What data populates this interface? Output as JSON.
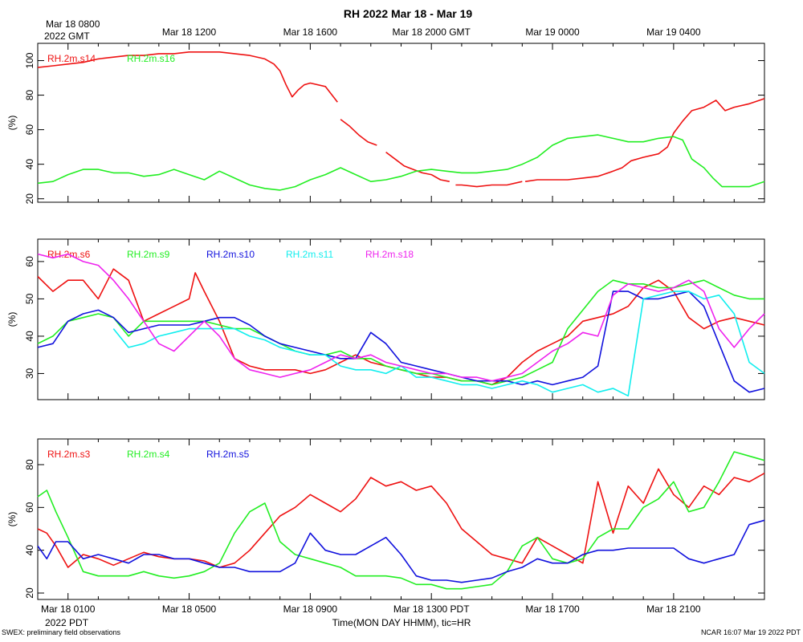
{
  "figure": {
    "title": "RH 2022 Mar 18 - Mar 19",
    "top_axis": {
      "first_label_line1": "Mar 18 0800",
      "first_label_line2": "2022 GMT",
      "labels": [
        "Mar 18 1200",
        "Mar 18 1600",
        "Mar 18 2000 GMT",
        "Mar 19 0000",
        "Mar 19 0400"
      ]
    },
    "bottom_axis": {
      "labels": [
        "Mar 18 0100",
        "Mar 18 0500",
        "Mar 18 0900",
        "Mar 18 1300 PDT",
        "Mar 18 1700",
        "Mar 18 2100"
      ],
      "year_label": "2022 PDT",
      "xlabel": "Time(MON DAY HHMM), tic=HR"
    },
    "footer_left": "SWEX: preliminary field observations",
    "footer_right": "NCAR 16:07 Mar 19 2022 PDT"
  },
  "chart_data": [
    {
      "type": "line",
      "x_unit": "hours since Mar 18 0000 PDT",
      "xlim": [
        0,
        24
      ],
      "ylabel": "(%)",
      "ylim": [
        18,
        110
      ],
      "yticks": [
        20,
        40,
        60,
        80,
        100
      ],
      "series": [
        {
          "name": "RH.2m.s14",
          "color": "#ee1111",
          "x": [
            0,
            0.5,
            1,
            1.5,
            2,
            2.5,
            3,
            3.5,
            4,
            4.5,
            5,
            5.5,
            6,
            6.5,
            7,
            7.5,
            7.8,
            8,
            8.2,
            8.4,
            8.6,
            8.8,
            9,
            9.5,
            9.9,
            null,
            10,
            10.3,
            10.6,
            10.9,
            11.2,
            null,
            11.5,
            11.8,
            12.1,
            12.4,
            12.7,
            13,
            13.3,
            13.6,
            null,
            13.8,
            14,
            14.5,
            15,
            15.5,
            16,
            null,
            16.1,
            16.5,
            17,
            17.5,
            18,
            18.5,
            19,
            19.3,
            19.6,
            20,
            20.5,
            20.8,
            21,
            21.3,
            21.6,
            22,
            22.2,
            22.4,
            22.7,
            23,
            23.5,
            24
          ],
          "y": [
            96,
            97,
            98,
            99,
            101,
            102,
            103,
            103,
            104,
            104,
            105,
            105,
            105,
            104,
            103,
            101,
            98,
            94,
            86,
            79,
            83,
            86,
            87,
            85,
            76,
            null,
            66,
            62,
            57,
            53,
            51,
            null,
            47,
            43,
            39,
            37,
            35,
            34,
            31,
            30,
            null,
            28,
            28,
            27,
            28,
            28,
            30,
            null,
            30,
            31,
            31,
            31,
            32,
            33,
            36,
            38,
            42,
            44,
            46,
            50,
            58,
            65,
            71,
            73,
            75,
            77,
            71,
            73,
            75,
            78
          ]
        },
        {
          "name": "RH.2m.s16",
          "color": "#22ee22",
          "x": [
            0,
            0.5,
            1,
            1.5,
            2,
            2.5,
            3,
            3.5,
            4,
            4.5,
            5,
            5.5,
            6,
            6.5,
            7,
            7.5,
            8,
            8.5,
            9,
            9.5,
            10,
            10.5,
            11,
            11.5,
            12,
            12.5,
            13,
            13.5,
            14,
            14.5,
            15,
            15.5,
            16,
            16.5,
            17,
            17.5,
            18,
            18.5,
            19,
            19.5,
            20,
            20.5,
            21,
            21.3,
            21.6,
            22,
            22.3,
            22.6,
            23,
            23.5,
            24
          ],
          "y": [
            29,
            30,
            34,
            37,
            37,
            35,
            35,
            33,
            34,
            37,
            34,
            31,
            36,
            32,
            28,
            26,
            25,
            27,
            31,
            34,
            38,
            34,
            30,
            31,
            33,
            36,
            37,
            36,
            35,
            35,
            36,
            37,
            40,
            44,
            51,
            55,
            56,
            57,
            55,
            53,
            53,
            55,
            56,
            54,
            43,
            38,
            32,
            27,
            27,
            27,
            30
          ]
        }
      ]
    },
    {
      "type": "line",
      "x_unit": "hours since Mar 18 0000 PDT",
      "xlim": [
        0,
        24
      ],
      "ylabel": "(%)",
      "ylim": [
        23,
        66
      ],
      "yticks": [
        30,
        40,
        50,
        60
      ],
      "series": [
        {
          "name": "RH.2m.s6",
          "color": "#ee1111",
          "x": [
            0,
            0.5,
            1,
            1.5,
            2,
            2.5,
            3,
            3.5,
            4,
            4.5,
            5,
            5.2,
            5.5,
            6,
            6.5,
            7,
            7.5,
            8,
            8.5,
            9,
            9.5,
            10,
            10.5,
            11,
            11.5,
            12,
            12.5,
            13,
            13.5,
            14,
            14.5,
            15,
            15.5,
            16,
            16.5,
            17,
            17.5,
            18,
            18.5,
            19,
            19.5,
            20,
            20.5,
            21,
            21.5,
            22,
            22.5,
            23,
            23.5,
            24
          ],
          "y": [
            56,
            52,
            55,
            55,
            50,
            58,
            55,
            44,
            46,
            48,
            50,
            57,
            52,
            44,
            34,
            32,
            31,
            31,
            31,
            30,
            31,
            33,
            35,
            33,
            32,
            31,
            30,
            29,
            29,
            28,
            28,
            27,
            29,
            33,
            36,
            38,
            40,
            44,
            45,
            46,
            48,
            53,
            55,
            52,
            45,
            42,
            44,
            45,
            44,
            43
          ]
        },
        {
          "name": "RH.2m.s9",
          "color": "#22ee22",
          "x": [
            0,
            0.5,
            1,
            1.5,
            2,
            2.5,
            3,
            3.5,
            4,
            4.5,
            5,
            5.5,
            6,
            6.5,
            7,
            7.5,
            8,
            8.5,
            9,
            9.5,
            10,
            10.5,
            11,
            11.5,
            12,
            12.5,
            13,
            13.5,
            14,
            14.5,
            15,
            15.5,
            16,
            16.5,
            17,
            17.5,
            18,
            18.5,
            19,
            19.5,
            20,
            20.5,
            21,
            21.5,
            22,
            22.5,
            23,
            23.5,
            24
          ],
          "y": [
            38,
            40,
            44,
            45,
            46,
            45,
            40,
            44,
            44,
            44,
            44,
            44,
            43,
            42,
            42,
            40,
            38,
            36,
            35,
            35,
            36,
            34,
            34,
            32,
            31,
            30,
            30,
            29,
            28,
            28,
            27,
            28,
            29,
            31,
            33,
            42,
            47,
            52,
            55,
            54,
            54,
            53,
            53,
            54,
            55,
            53,
            51,
            50,
            50
          ]
        },
        {
          "name": "RH.2m.s10",
          "color": "#1111dd",
          "x": [
            0,
            0.5,
            1,
            1.5,
            2,
            2.5,
            3,
            3.5,
            4,
            4.5,
            5,
            5.5,
            6,
            6.5,
            7,
            7.5,
            8,
            8.5,
            9,
            9.5,
            10,
            10.5,
            11,
            11.5,
            12,
            12.5,
            13,
            13.5,
            14,
            14.5,
            15,
            15.5,
            16,
            16.5,
            17,
            17.5,
            18,
            18.5,
            19,
            19.5,
            20,
            20.5,
            21,
            21.5,
            22,
            22.5,
            23,
            23.5,
            24
          ],
          "y": [
            37,
            38,
            44,
            46,
            47,
            45,
            41,
            42,
            43,
            43,
            43,
            44,
            45,
            45,
            43,
            40,
            38,
            37,
            36,
            35,
            34,
            34,
            41,
            38,
            33,
            32,
            31,
            30,
            29,
            28,
            28,
            28,
            27,
            28,
            27,
            28,
            29,
            32,
            52,
            52,
            50,
            50,
            51,
            52,
            48,
            38,
            28,
            25,
            26
          ]
        },
        {
          "name": "RH.2m.s11",
          "color": "#11eeee",
          "x": [
            2.5,
            3,
            3.5,
            4,
            4.5,
            5,
            5.5,
            6,
            6.5,
            7,
            7.5,
            8,
            8.5,
            9,
            9.5,
            10,
            10.5,
            11,
            11.5,
            12,
            12.5,
            13,
            13.5,
            14,
            14.5,
            15,
            15.5,
            16,
            16.5,
            17,
            17.5,
            18,
            18.5,
            19,
            19.5,
            20,
            20.5,
            21,
            21.5,
            22,
            22.5,
            23,
            23.5,
            24
          ],
          "y": [
            42,
            37,
            38,
            40,
            41,
            42,
            42,
            42,
            42,
            40,
            39,
            37,
            36,
            35,
            35,
            32,
            31,
            31,
            30,
            32,
            29,
            29,
            28,
            27,
            27,
            26,
            27,
            28,
            27,
            25,
            26,
            27,
            25,
            26,
            24,
            50,
            51,
            52,
            52,
            50,
            51,
            46,
            33,
            30
          ]
        },
        {
          "name": "RH.2m.s18",
          "color": "#ee22ee",
          "x": [
            0,
            0.5,
            1,
            1.5,
            2,
            2.5,
            3,
            3.5,
            4,
            4.5,
            5,
            5.5,
            6,
            6.5,
            7,
            7.5,
            8,
            8.5,
            9,
            9.5,
            10,
            10.5,
            11,
            11.5,
            12,
            12.5,
            13,
            13.5,
            14,
            14.5,
            15,
            15.5,
            16,
            16.5,
            17,
            17.5,
            18,
            18.5,
            19,
            19.5,
            20,
            20.5,
            21,
            21.5,
            22,
            22.5,
            23,
            23.5,
            24
          ],
          "y": [
            62,
            61,
            62,
            60,
            59,
            55,
            50,
            44,
            38,
            36,
            40,
            44,
            40,
            34,
            31,
            30,
            29,
            30,
            31,
            33,
            35,
            34,
            35,
            33,
            32,
            31,
            30,
            30,
            29,
            29,
            28,
            29,
            30,
            33,
            36,
            38,
            41,
            40,
            51,
            54,
            53,
            52,
            53,
            55,
            52,
            42,
            37,
            42,
            46
          ]
        }
      ]
    },
    {
      "type": "line",
      "x_unit": "hours since Mar 18 0000 PDT",
      "xlim": [
        0,
        24
      ],
      "ylabel": "(%)",
      "ylim": [
        17,
        92
      ],
      "yticks": [
        20,
        40,
        60,
        80
      ],
      "series": [
        {
          "name": "RH.2m.s3",
          "color": "#ee1111",
          "x": [
            0,
            0.3,
            0.6,
            1,
            1.5,
            2,
            2.5,
            3,
            3.5,
            4,
            4.5,
            5,
            5.5,
            6,
            6.5,
            7,
            7.5,
            8,
            8.5,
            9,
            9.5,
            10,
            10.5,
            11,
            11.5,
            12,
            12.5,
            13,
            13.5,
            14,
            14.5,
            15,
            15.5,
            16,
            16.5,
            17,
            17.5,
            18,
            18.5,
            19,
            19.5,
            20,
            20.5,
            21,
            21.5,
            22,
            22.5,
            23,
            23.5,
            24
          ],
          "y": [
            50,
            48,
            42,
            32,
            38,
            36,
            33,
            36,
            39,
            37,
            36,
            36,
            35,
            32,
            34,
            40,
            48,
            56,
            60,
            66,
            62,
            58,
            64,
            74,
            70,
            72,
            68,
            70,
            62,
            50,
            44,
            38,
            36,
            34,
            46,
            42,
            38,
            34,
            72,
            48,
            70,
            62,
            78,
            66,
            60,
            70,
            66,
            74,
            72,
            76
          ]
        },
        {
          "name": "RH.2m.s4",
          "color": "#22ee22",
          "x": [
            0,
            0.3,
            0.6,
            1,
            1.5,
            2,
            2.5,
            3,
            3.5,
            4,
            4.5,
            5,
            5.5,
            6,
            6.5,
            7,
            7.5,
            8,
            8.5,
            9,
            9.5,
            10,
            10.5,
            11,
            11.5,
            12,
            12.5,
            13,
            13.5,
            14,
            14.5,
            15,
            15.5,
            16,
            16.5,
            17,
            17.5,
            18,
            18.5,
            19,
            19.5,
            20,
            20.5,
            21,
            21.5,
            22,
            22.5,
            23,
            23.5,
            24
          ],
          "y": [
            65,
            68,
            58,
            46,
            30,
            28,
            28,
            28,
            30,
            28,
            27,
            28,
            30,
            34,
            48,
            58,
            62,
            44,
            38,
            36,
            34,
            32,
            28,
            28,
            28,
            27,
            24,
            24,
            22,
            22,
            23,
            24,
            30,
            42,
            46,
            36,
            34,
            36,
            46,
            50,
            50,
            60,
            64,
            72,
            58,
            60,
            72,
            86,
            84,
            82
          ]
        },
        {
          "name": "RH.2m.s5",
          "color": "#1111dd",
          "x": [
            0,
            0.3,
            0.6,
            1,
            1.5,
            2,
            2.5,
            3,
            3.5,
            4,
            4.5,
            5,
            5.5,
            6,
            6.5,
            7,
            7.5,
            8,
            8.5,
            9,
            9.5,
            10,
            10.5,
            11,
            11.5,
            12,
            12.5,
            13,
            13.5,
            14,
            14.5,
            15,
            15.5,
            16,
            16.5,
            17,
            17.5,
            18,
            18.5,
            19,
            19.5,
            20,
            20.5,
            21,
            21.5,
            22,
            22.5,
            23,
            23.5,
            24
          ],
          "y": [
            42,
            36,
            44,
            44,
            36,
            38,
            36,
            34,
            38,
            38,
            36,
            36,
            34,
            32,
            32,
            30,
            30,
            30,
            34,
            48,
            40,
            38,
            38,
            42,
            46,
            38,
            28,
            26,
            26,
            25,
            26,
            27,
            30,
            32,
            36,
            34,
            34,
            38,
            40,
            40,
            41,
            41,
            41,
            41,
            36,
            34,
            36,
            38,
            52,
            54
          ]
        }
      ]
    }
  ]
}
